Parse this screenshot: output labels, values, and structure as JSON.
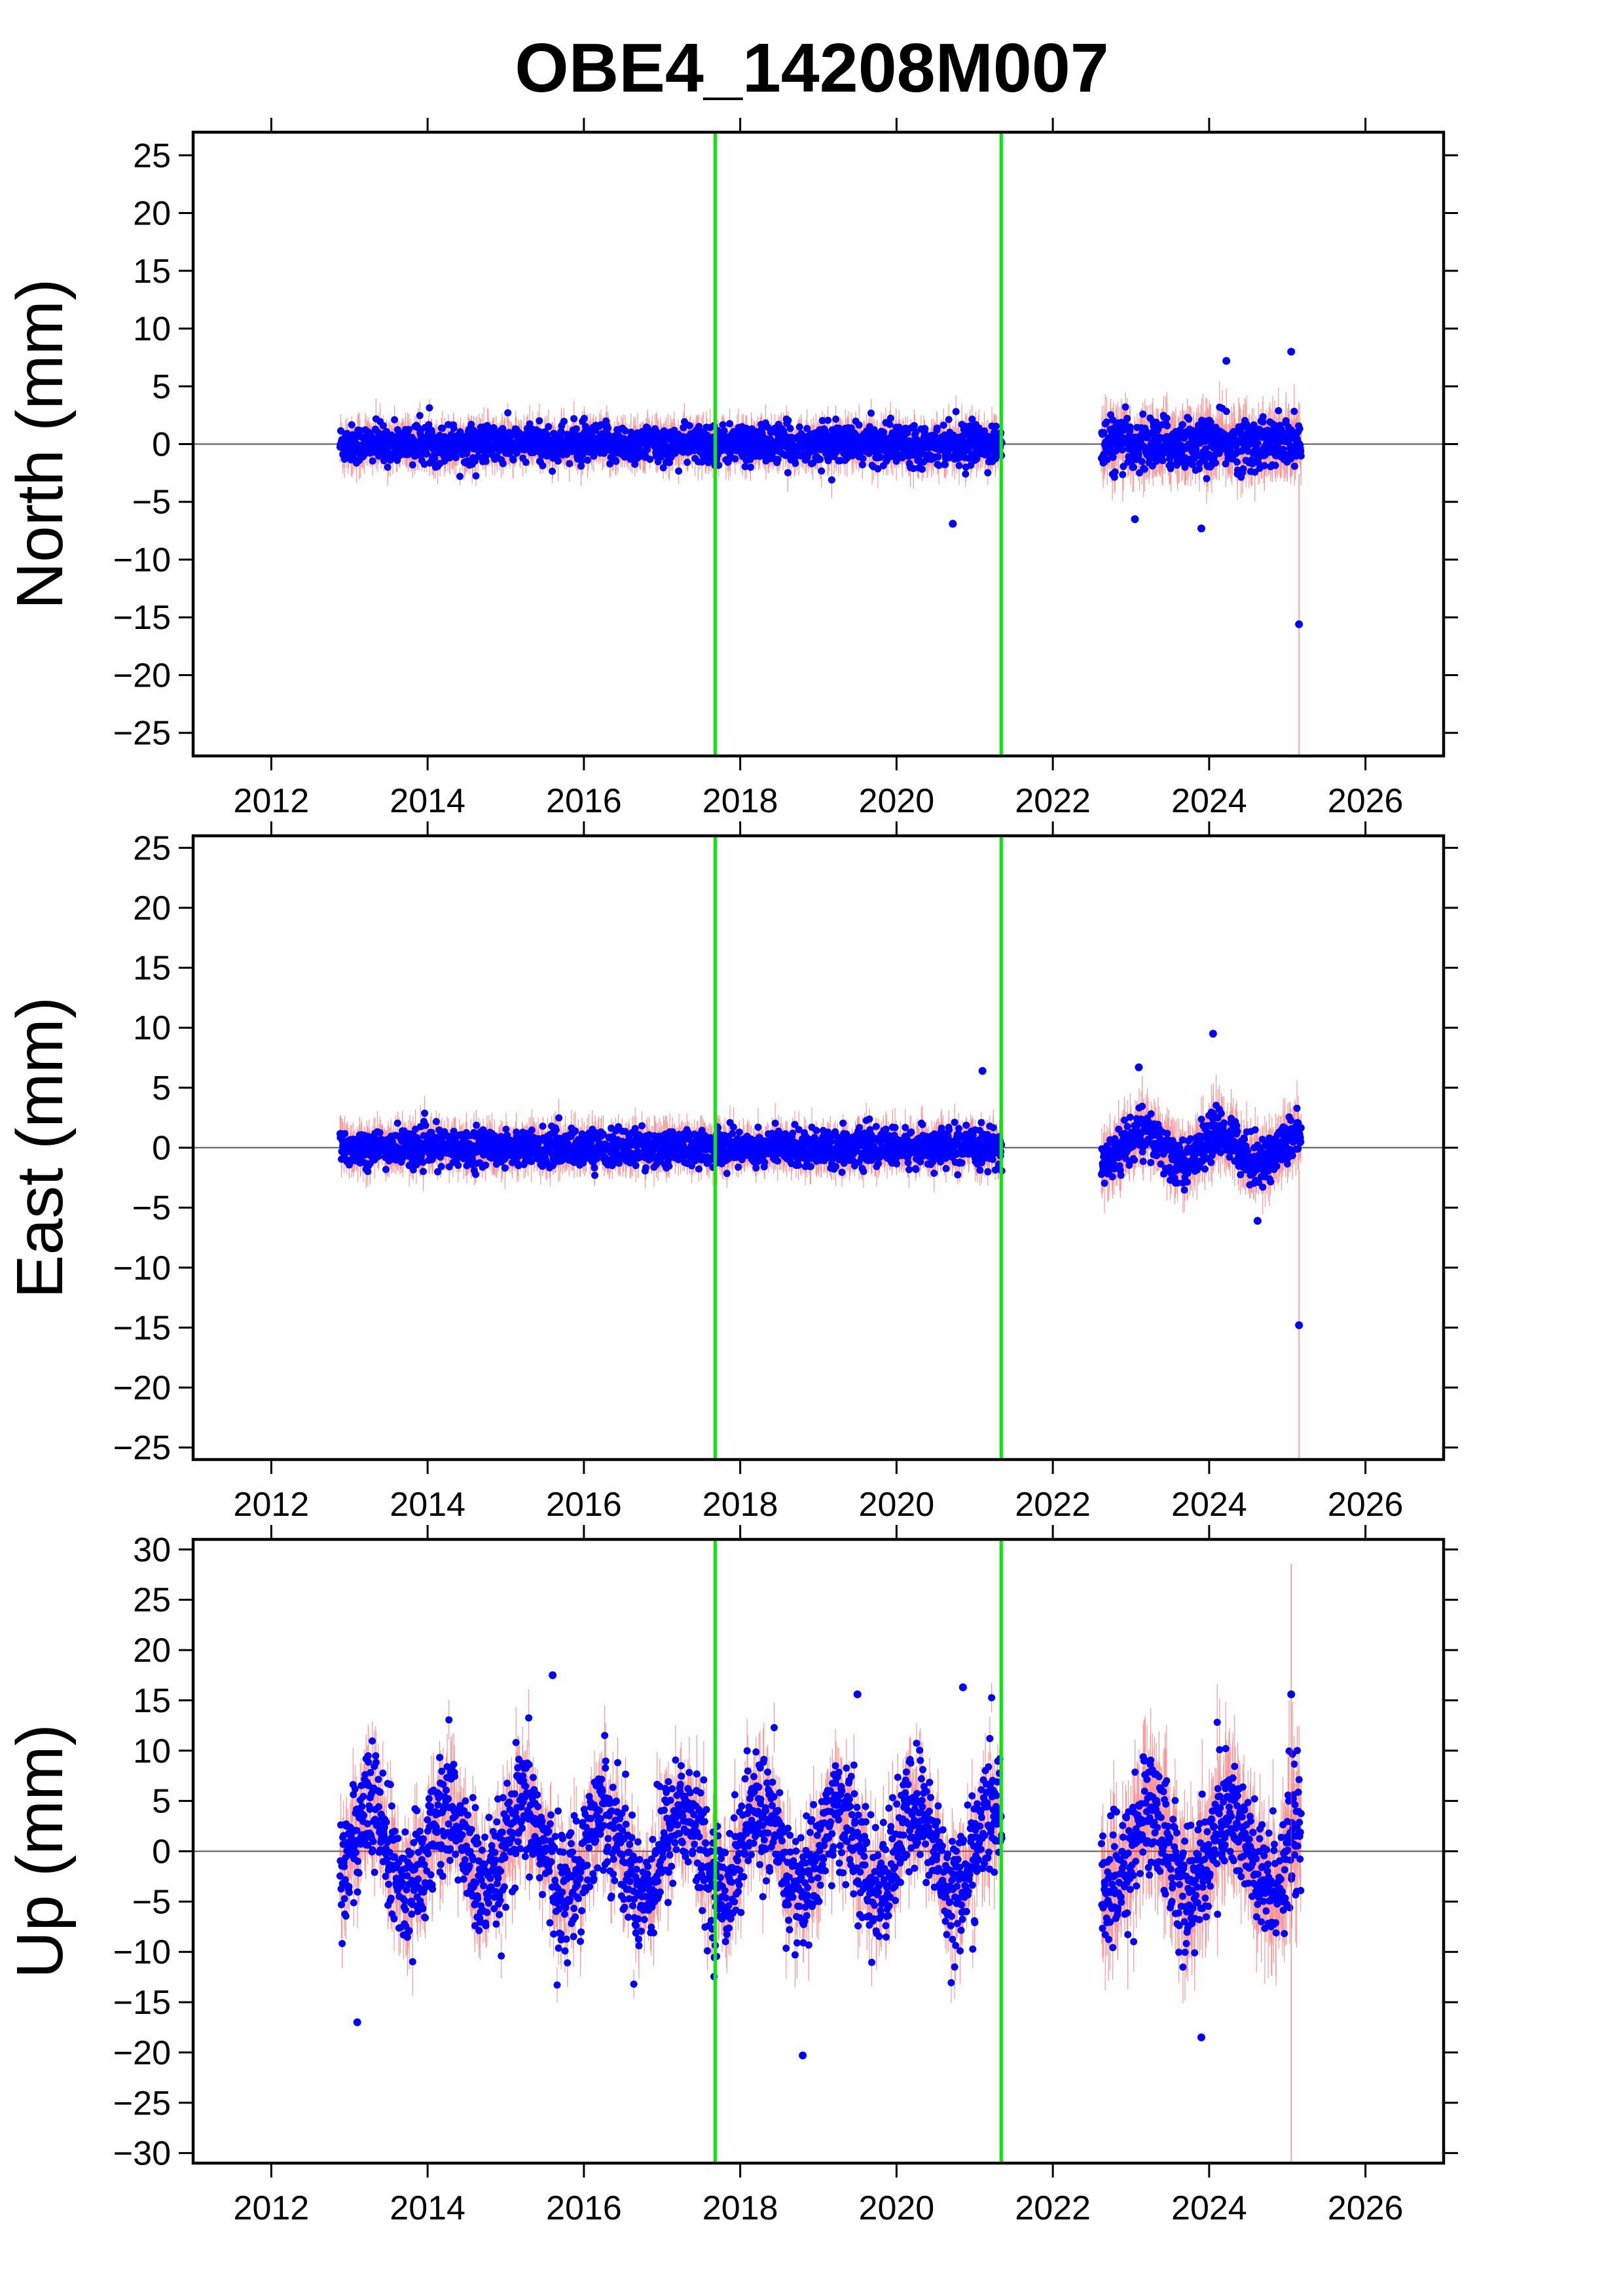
{
  "colors": {
    "point": "#0000ff",
    "error_bar": "#ff4040",
    "event_line": "#00ee00",
    "frame": "#000000",
    "zero_line": "#555555"
  },
  "chart_data": {
    "type": "scatter",
    "title": "OBE4_14208M007",
    "x_unit": "year",
    "xlim": [
      2011.0,
      2027.0
    ],
    "x_ticks": [
      2012,
      2014,
      2016,
      2018,
      2020,
      2022,
      2024,
      2026
    ],
    "event_lines": [
      2017.68,
      2021.34
    ],
    "data_gap": [
      2021.35,
      2022.62
    ],
    "time_span": [
      2012.88,
      2025.18
    ],
    "panels": [
      {
        "name": "north",
        "ylabel": "North (mm)",
        "ylim": [
          -27,
          27
        ],
        "y_ticks": [
          25,
          20,
          15,
          10,
          5,
          0,
          -5,
          -10,
          -15,
          -20,
          -25
        ],
        "scatter_amplitude_mm": 1.1,
        "scatter_amplitude_after_gap_mm": 1.5,
        "outliers": [
          {
            "x": 2020.72,
            "y": -6.9
          },
          {
            "x": 2023.05,
            "y": -6.5
          },
          {
            "x": 2023.9,
            "y": -7.3
          },
          {
            "x": 2024.22,
            "y": 7.2
          },
          {
            "x": 2025.05,
            "y": 8.0
          },
          {
            "x": 2025.15,
            "y": -15.6
          }
        ]
      },
      {
        "name": "east",
        "ylabel": "East (mm)",
        "ylim": [
          -26,
          26
        ],
        "y_ticks": [
          25,
          20,
          15,
          10,
          5,
          0,
          -5,
          -10,
          -15,
          -20,
          -25
        ],
        "scatter_amplitude_mm": 1.0,
        "scatter_amplitude_after_gap_mm": 1.3,
        "outliers": [
          {
            "x": 2021.1,
            "y": 6.4
          },
          {
            "x": 2023.1,
            "y": 6.7
          },
          {
            "x": 2024.05,
            "y": 9.5
          },
          {
            "x": 2024.62,
            "y": -6.1
          },
          {
            "x": 2025.15,
            "y": -14.8
          }
        ]
      },
      {
        "name": "up",
        "ylabel": "Up (mm)",
        "ylim": [
          -31,
          31
        ],
        "y_ticks": [
          30,
          25,
          20,
          15,
          10,
          5,
          0,
          -5,
          -10,
          -15,
          -20,
          -25,
          -30
        ],
        "scatter_amplitude_mm": 4.0,
        "scatter_amplitude_after_gap_mm": 4.2,
        "seasonal_amplitude_mm": 4.0,
        "outliers": [
          {
            "x": 2013.1,
            "y": -17.0
          },
          {
            "x": 2015.6,
            "y": 17.5
          },
          {
            "x": 2018.8,
            "y": -20.3
          },
          {
            "x": 2019.5,
            "y": 15.6
          },
          {
            "x": 2020.85,
            "y": 16.3
          },
          {
            "x": 2023.9,
            "y": -18.5
          },
          {
            "x": 2025.05,
            "y": 15.6
          }
        ]
      }
    ]
  }
}
